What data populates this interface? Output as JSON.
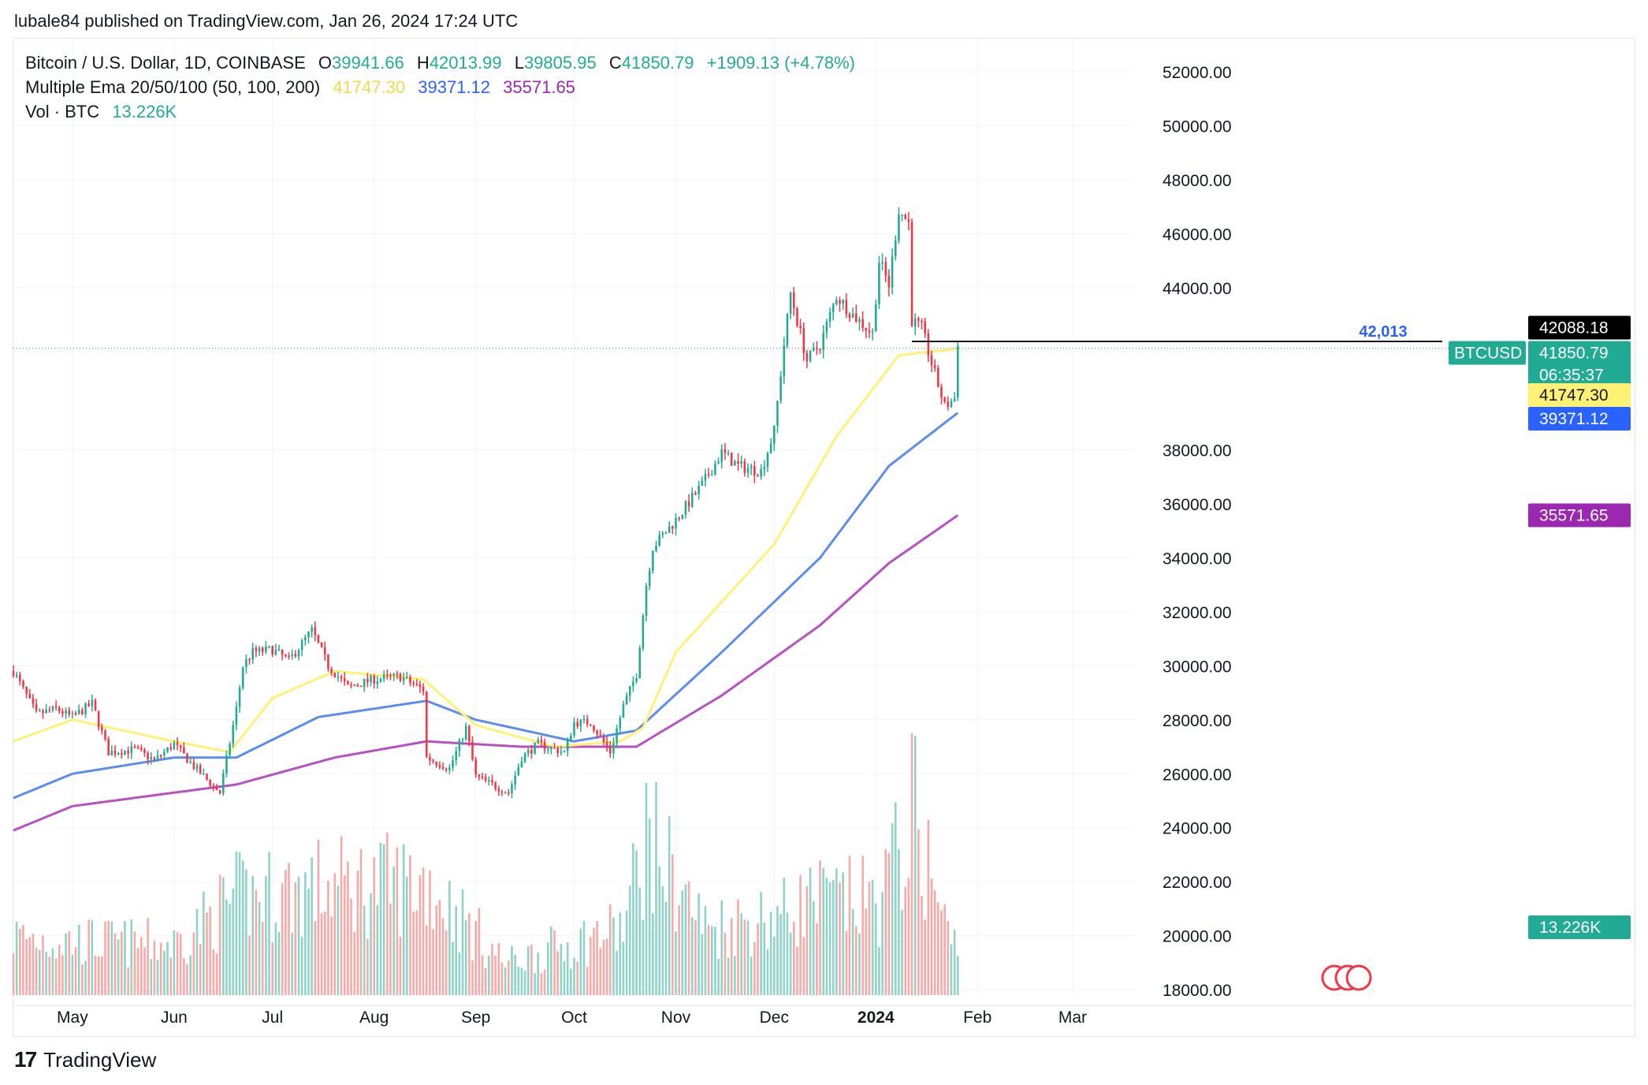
{
  "header": {
    "text": "lubale84 published on TradingView.com, Jan 26, 2024 17:24 UTC"
  },
  "legend": {
    "symbol": "Bitcoin / U.S. Dollar, 1D, COINBASE",
    "o_label": "O",
    "o_value": "39941.66",
    "h_label": "H",
    "h_value": "42013.99",
    "l_label": "L",
    "l_value": "39805.95",
    "c_label": "C",
    "c_value": "41850.79",
    "change": "+1909.13 (+4.78%)",
    "ema_label": "Multiple Ema 20/50/100 (50, 100, 200)",
    "ema1": "41747.30",
    "ema2": "39371.12",
    "ema3": "35571.65",
    "vol_label": "Vol · BTC",
    "vol_value": "13.226K"
  },
  "footer": {
    "brand": "TradingView",
    "logo_text": "17"
  },
  "colors": {
    "up": "#22ab94",
    "down": "#f23645",
    "vol_up": "#8fd3c8",
    "vol_down": "#f7a9a7",
    "ema1": "#fff176",
    "ema2": "#5b8def",
    "ema3": "#b94fc4",
    "grid": "#f0f3fa",
    "text": "#131722",
    "blue_label": "#2962ff"
  },
  "chart_data": {
    "type": "candlestick",
    "symbol": "BTCUSD",
    "ylim": [
      17800,
      53200
    ],
    "y_ticks": [
      "52000.00",
      "50000.00",
      "48000.00",
      "46000.00",
      "44000.00",
      "38000.00",
      "34000.00",
      "32000.00",
      "30000.00",
      "28000.00",
      "26000.00",
      "24000.00",
      "22000.00",
      "20000.00",
      "18000.00"
    ],
    "y_tick_values": [
      52000,
      50000,
      48000,
      46000,
      44000,
      38000,
      34000,
      32000,
      30000,
      28000,
      26000,
      24000,
      22000,
      20000,
      18000
    ],
    "partial_ticks": [
      {
        "label": "36000.00",
        "value": 36000
      }
    ],
    "x_labels": [
      {
        "label": "May",
        "date": "2023-05-01",
        "bold": false
      },
      {
        "label": "Jun",
        "date": "2023-06-01",
        "bold": false
      },
      {
        "label": "Jul",
        "date": "2023-07-01",
        "bold": false
      },
      {
        "label": "Aug",
        "date": "2023-08-01",
        "bold": false
      },
      {
        "label": "Sep",
        "date": "2023-09-01",
        "bold": false
      },
      {
        "label": "Oct",
        "date": "2023-10-01",
        "bold": false
      },
      {
        "label": "Nov",
        "date": "2023-11-01",
        "bold": false
      },
      {
        "label": "Dec",
        "date": "2023-12-01",
        "bold": false
      },
      {
        "label": "2024",
        "date": "2024-01-01",
        "bold": true
      },
      {
        "label": "Feb",
        "date": "2024-02-01",
        "bold": false
      },
      {
        "label": "Mar",
        "date": "2024-03-01",
        "bold": false
      }
    ],
    "x_range": [
      "2023-04-13",
      "2024-03-20"
    ],
    "price_anchors": [
      [
        "2023-04-13",
        29800
      ],
      [
        "2023-04-20",
        28200
      ],
      [
        "2023-04-26",
        28400
      ],
      [
        "2023-05-01",
        28100
      ],
      [
        "2023-05-07",
        28600
      ],
      [
        "2023-05-12",
        26800
      ],
      [
        "2023-05-20",
        26900
      ],
      [
        "2023-05-26",
        26500
      ],
      [
        "2023-06-01",
        27100
      ],
      [
        "2023-06-06",
        26400
      ],
      [
        "2023-06-10",
        25900
      ],
      [
        "2023-06-15",
        25300
      ],
      [
        "2023-06-20",
        28400
      ],
      [
        "2023-06-22",
        30000
      ],
      [
        "2023-06-25",
        30500
      ],
      [
        "2023-07-01",
        30600
      ],
      [
        "2023-07-06",
        30200
      ],
      [
        "2023-07-13",
        31300
      ],
      [
        "2023-07-18",
        30000
      ],
      [
        "2023-07-24",
        29200
      ],
      [
        "2023-08-01",
        29500
      ],
      [
        "2023-08-09",
        29600
      ],
      [
        "2023-08-16",
        29100
      ],
      [
        "2023-08-17",
        26600
      ],
      [
        "2023-08-24",
        26200
      ],
      [
        "2023-08-29",
        27700
      ],
      [
        "2023-09-01",
        25900
      ],
      [
        "2023-09-11",
        25300
      ],
      [
        "2023-09-15",
        26600
      ],
      [
        "2023-09-20",
        27100
      ],
      [
        "2023-09-28",
        26800
      ],
      [
        "2023-10-01",
        27900
      ],
      [
        "2023-10-06",
        27900
      ],
      [
        "2023-10-12",
        26800
      ],
      [
        "2023-10-16",
        28500
      ],
      [
        "2023-10-20",
        29700
      ],
      [
        "2023-10-23",
        33000
      ],
      [
        "2023-10-25",
        34400
      ],
      [
        "2023-11-01",
        35400
      ],
      [
        "2023-11-09",
        36700
      ],
      [
        "2023-11-15",
        37900
      ],
      [
        "2023-11-20",
        37400
      ],
      [
        "2023-11-27",
        37200
      ],
      [
        "2023-12-01",
        38700
      ],
      [
        "2023-12-04",
        41900
      ],
      [
        "2023-12-06",
        43800
      ],
      [
        "2023-12-11",
        41300
      ],
      [
        "2023-12-15",
        41900
      ],
      [
        "2023-12-20",
        43700
      ],
      [
        "2023-12-25",
        43000
      ],
      [
        "2023-12-31",
        42300
      ],
      [
        "2024-01-02",
        45000
      ],
      [
        "2024-01-05",
        44100
      ],
      [
        "2024-01-08",
        46900
      ],
      [
        "2024-01-11",
        46400
      ],
      [
        "2024-01-12",
        42800
      ],
      [
        "2024-01-15",
        42500
      ],
      [
        "2024-01-18",
        41200
      ],
      [
        "2024-01-22",
        39600
      ],
      [
        "2024-01-25",
        39900
      ],
      [
        "2024-01-26",
        41850.79
      ]
    ],
    "ema_anchors": {
      "ema50": [
        [
          "2023-04-13",
          27200
        ],
        [
          "2023-05-01",
          28000
        ],
        [
          "2023-06-01",
          27200
        ],
        [
          "2023-06-18",
          26800
        ],
        [
          "2023-07-01",
          28800
        ],
        [
          "2023-07-20",
          29800
        ],
        [
          "2023-08-16",
          29500
        ],
        [
          "2023-09-01",
          27800
        ],
        [
          "2023-09-25",
          27000
        ],
        [
          "2023-10-15",
          27200
        ],
        [
          "2023-10-22",
          27700
        ],
        [
          "2023-11-01",
          30500
        ],
        [
          "2023-12-01",
          34500
        ],
        [
          "2023-12-20",
          38500
        ],
        [
          "2024-01-08",
          41500
        ],
        [
          "2024-01-26",
          41747.3
        ]
      ],
      "ema100": [
        [
          "2023-04-13",
          25100
        ],
        [
          "2023-05-01",
          26000
        ],
        [
          "2023-06-01",
          26600
        ],
        [
          "2023-06-20",
          26600
        ],
        [
          "2023-07-15",
          28100
        ],
        [
          "2023-08-17",
          28700
        ],
        [
          "2023-09-01",
          28000
        ],
        [
          "2023-10-01",
          27200
        ],
        [
          "2023-10-20",
          27600
        ],
        [
          "2023-11-15",
          30500
        ],
        [
          "2023-12-15",
          34000
        ],
        [
          "2024-01-05",
          37400
        ],
        [
          "2024-01-26",
          39371.12
        ]
      ],
      "ema200": [
        [
          "2023-04-13",
          23900
        ],
        [
          "2023-05-01",
          24800
        ],
        [
          "2023-06-01",
          25300
        ],
        [
          "2023-06-20",
          25600
        ],
        [
          "2023-07-20",
          26600
        ],
        [
          "2023-08-17",
          27200
        ],
        [
          "2023-09-15",
          27000
        ],
        [
          "2023-10-20",
          27000
        ],
        [
          "2023-11-15",
          28900
        ],
        [
          "2023-12-15",
          31500
        ],
        [
          "2024-01-05",
          33800
        ],
        [
          "2024-01-26",
          35571.65
        ]
      ]
    },
    "volume_scale": {
      "max": 80000
    },
    "volume_anchors": [
      [
        "2023-04-13",
        22000
      ],
      [
        "2023-05-01",
        20000
      ],
      [
        "2023-06-01",
        19000
      ],
      [
        "2023-06-20",
        36000
      ],
      [
        "2023-07-14",
        40000
      ],
      [
        "2023-08-17",
        42000
      ],
      [
        "2023-09-10",
        12000
      ],
      [
        "2023-10-16",
        25000
      ],
      [
        "2023-10-23",
        60000
      ],
      [
        "2023-11-10",
        25000
      ],
      [
        "2023-12-04",
        30000
      ],
      [
        "2023-12-11",
        35000
      ],
      [
        "2024-01-02",
        35000
      ],
      [
        "2024-01-11",
        62000
      ],
      [
        "2024-01-12",
        70000
      ],
      [
        "2024-01-22",
        26000
      ],
      [
        "2024-01-26",
        16000
      ]
    ],
    "horizontal_line": {
      "value": 42013,
      "label": "42,013",
      "from": "2024-01-12"
    },
    "price_labels": [
      {
        "text": "42088.18",
        "value": 42088.18,
        "bg": "#000000",
        "fg": "#ffffff"
      },
      {
        "text": "41850.79",
        "value": 41850.79,
        "bg": "#22ab94",
        "fg": "#ffffff",
        "sub": "06:35:37",
        "tag": "BTCUSD"
      },
      {
        "text": "41747.30",
        "value": 41747.3,
        "bg": "#fff176",
        "fg": "#131722"
      },
      {
        "text": "39371.12",
        "value": 39371.12,
        "bg": "#2962ff",
        "fg": "#ffffff"
      },
      {
        "text": "35571.65",
        "value": 35571.65,
        "bg": "#9c27b0",
        "fg": "#ffffff"
      },
      {
        "text": "13.226K",
        "bg": "#22ab94",
        "fg": "#ffffff",
        "volume": true
      }
    ]
  }
}
